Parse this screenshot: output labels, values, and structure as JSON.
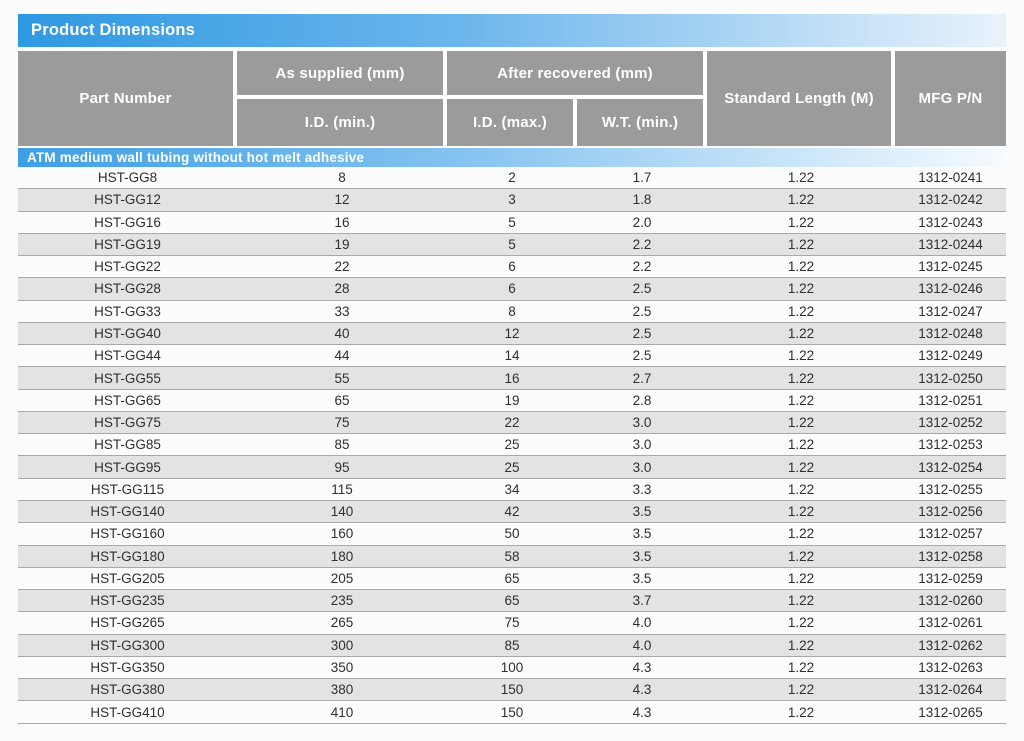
{
  "page": {
    "title": "Product Dimensions"
  },
  "table": {
    "headers": {
      "part_number": "Part Number",
      "as_supplied": "As supplied (mm)",
      "after_recovered": "After recovered (mm)",
      "id_min": "I.D. (min.)",
      "id_max": "I.D. (max.)",
      "wt_min": "W.T. (min.)",
      "standard_length": "Standard Length (M)",
      "mfg_pn": "MFG P/N"
    },
    "section_label": "ATM medium wall tubing without hot melt adhesive",
    "columns": [
      "part_number",
      "id_min",
      "id_max",
      "wt_min",
      "standard_length",
      "mfg_pn"
    ],
    "rows": [
      [
        "HST-GG8",
        "8",
        "2",
        "1.7",
        "1.22",
        "1312-0241"
      ],
      [
        "HST-GG12",
        "12",
        "3",
        "1.8",
        "1.22",
        "1312-0242"
      ],
      [
        "HST-GG16",
        "16",
        "5",
        "2.0",
        "1.22",
        "1312-0243"
      ],
      [
        "HST-GG19",
        "19",
        "5",
        "2.2",
        "1.22",
        "1312-0244"
      ],
      [
        "HST-GG22",
        "22",
        "6",
        "2.2",
        "1.22",
        "1312-0245"
      ],
      [
        "HST-GG28",
        "28",
        "6",
        "2.5",
        "1.22",
        "1312-0246"
      ],
      [
        "HST-GG33",
        "33",
        "8",
        "2.5",
        "1.22",
        "1312-0247"
      ],
      [
        "HST-GG40",
        "40",
        "12",
        "2.5",
        "1.22",
        "1312-0248"
      ],
      [
        "HST-GG44",
        "44",
        "14",
        "2.5",
        "1.22",
        "1312-0249"
      ],
      [
        "HST-GG55",
        "55",
        "16",
        "2.7",
        "1.22",
        "1312-0250"
      ],
      [
        "HST-GG65",
        "65",
        "19",
        "2.8",
        "1.22",
        "1312-0251"
      ],
      [
        "HST-GG75",
        "75",
        "22",
        "3.0",
        "1.22",
        "1312-0252"
      ],
      [
        "HST-GG85",
        "85",
        "25",
        "3.0",
        "1.22",
        "1312-0253"
      ],
      [
        "HST-GG95",
        "95",
        "25",
        "3.0",
        "1.22",
        "1312-0254"
      ],
      [
        "HST-GG115",
        "115",
        "34",
        "3.3",
        "1.22",
        "1312-0255"
      ],
      [
        "HST-GG140",
        "140",
        "42",
        "3.5",
        "1.22",
        "1312-0256"
      ],
      [
        "HST-GG160",
        "160",
        "50",
        "3.5",
        "1.22",
        "1312-0257"
      ],
      [
        "HST-GG180",
        "180",
        "58",
        "3.5",
        "1.22",
        "1312-0258"
      ],
      [
        "HST-GG205",
        "205",
        "65",
        "3.5",
        "1.22",
        "1312-0259"
      ],
      [
        "HST-GG235",
        "235",
        "65",
        "3.7",
        "1.22",
        "1312-0260"
      ],
      [
        "HST-GG265",
        "265",
        "75",
        "4.0",
        "1.22",
        "1312-0261"
      ],
      [
        "HST-GG300",
        "300",
        "85",
        "4.0",
        "1.22",
        "1312-0262"
      ],
      [
        "HST-GG350",
        "350",
        "100",
        "4.3",
        "1.22",
        "1312-0263"
      ],
      [
        "HST-GG380",
        "380",
        "150",
        "4.3",
        "1.22",
        "1312-0264"
      ],
      [
        "HST-GG410",
        "410",
        "150",
        "4.3",
        "1.22",
        "1312-0265"
      ]
    ]
  },
  "colors": {
    "title_bar_start": "#2e99e2",
    "title_bar_end": "#e9f3fc",
    "header_gray": "#9b9b9b",
    "section_start": "#3f9fe5",
    "section_end": "#f6fbff",
    "row_alt": "#e3e3e3",
    "row_border": "#a8a8a8",
    "data_text": "#2f2f2f"
  }
}
